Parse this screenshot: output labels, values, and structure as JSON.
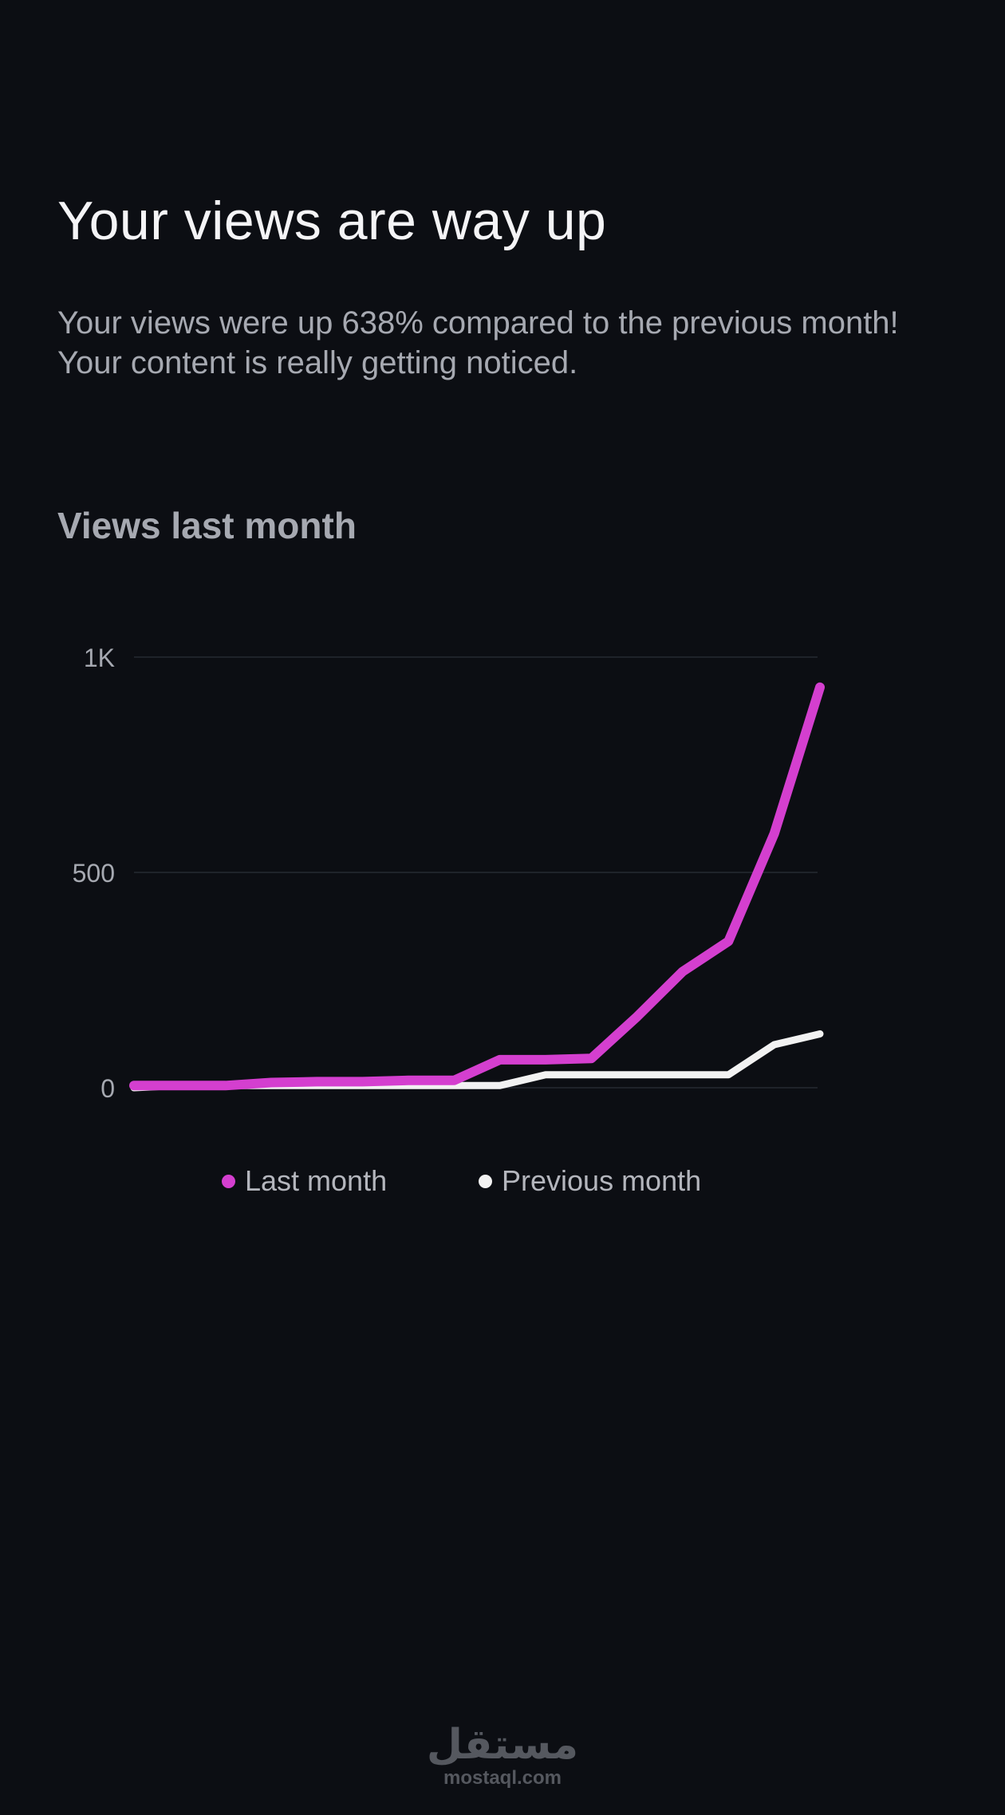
{
  "headline": "Your views are way up",
  "description": "Your views were up 638% compared to the previous month! Your content is really getting noticed.",
  "section_title": "Views last month",
  "watermark": {
    "logo": "مستقل",
    "site": "mostaql.com"
  },
  "colors": {
    "last_month": "#d43fcf",
    "previous_month": "#f2f2f2",
    "grid": "#1f232a",
    "tick": "#a6a9b1"
  },
  "chart_data": {
    "type": "line",
    "title": "Views last month",
    "xlabel": "",
    "ylabel": "",
    "ylim": [
      0,
      1000
    ],
    "yticks": [
      0,
      500,
      1000
    ],
    "ytick_labels": [
      "0",
      "500",
      "1K"
    ],
    "grid": true,
    "legend_position": "bottom",
    "series": [
      {
        "name": "Last month",
        "color": "#d43fcf",
        "values": [
          5,
          5,
          5,
          12,
          14,
          14,
          17,
          17,
          65,
          65,
          68,
          165,
          270,
          340,
          590,
          930
        ]
      },
      {
        "name": "Previous month",
        "color": "#f2f2f2",
        "values": [
          0,
          5,
          5,
          5,
          5,
          5,
          5,
          5,
          5,
          30,
          30,
          30,
          30,
          30,
          100,
          125
        ]
      }
    ]
  }
}
